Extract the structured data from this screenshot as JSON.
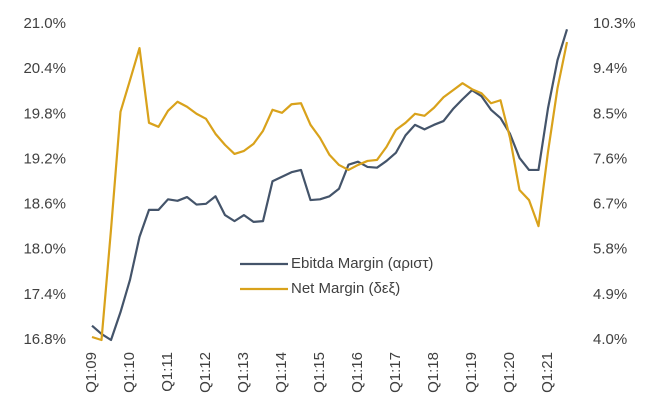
{
  "chart_data": {
    "type": "line",
    "categories": [
      "Q1:09",
      null,
      null,
      null,
      "Q1:10",
      null,
      null,
      null,
      "Q1:11",
      null,
      null,
      null,
      "Q1:12",
      null,
      null,
      null,
      "Q1:13",
      null,
      null,
      null,
      "Q1:14",
      null,
      null,
      null,
      "Q1:15",
      null,
      null,
      null,
      "Q1:16",
      null,
      null,
      null,
      "Q1:17",
      null,
      null,
      null,
      "Q1:18",
      null,
      null,
      null,
      "Q1:19",
      null,
      null,
      null,
      "Q1:20",
      null,
      null,
      null,
      "Q1:21",
      null,
      null
    ],
    "series": [
      {
        "name": "Ebitda Margin (αριστ)",
        "color": "#44546a",
        "axis": "y",
        "values": [
          16.99,
          16.88,
          16.8,
          17.17,
          17.6,
          18.17,
          18.53,
          18.53,
          18.67,
          18.65,
          18.7,
          18.6,
          18.61,
          18.71,
          18.46,
          18.38,
          18.46,
          18.37,
          18.38,
          18.91,
          18.97,
          19.03,
          19.06,
          18.66,
          18.67,
          18.71,
          18.81,
          19.13,
          19.17,
          19.1,
          19.09,
          19.18,
          19.29,
          19.52,
          19.66,
          19.6,
          19.66,
          19.71,
          19.87,
          20.0,
          20.12,
          20.04,
          19.86,
          19.75,
          19.54,
          19.22,
          19.06,
          19.06,
          19.88,
          20.52,
          20.93
        ]
      },
      {
        "name": "Net Margin (δεξ)",
        "color": "#d9a21b",
        "axis": "y2",
        "values": [
          4.06,
          4.0,
          6.2,
          8.55,
          9.18,
          9.82,
          8.33,
          8.25,
          8.57,
          8.75,
          8.65,
          8.51,
          8.41,
          8.11,
          7.89,
          7.71,
          7.77,
          7.91,
          8.17,
          8.59,
          8.53,
          8.7,
          8.72,
          8.29,
          8.03,
          7.69,
          7.49,
          7.39,
          7.49,
          7.57,
          7.59,
          7.85,
          8.19,
          8.33,
          8.51,
          8.47,
          8.63,
          8.84,
          8.98,
          9.12,
          9.0,
          8.92,
          8.72,
          8.78,
          8.03,
          6.99,
          6.79,
          6.27,
          7.75,
          9.02,
          9.94
        ]
      }
    ],
    "ylim": [
      16.8,
      21.0
    ],
    "yticks": [
      {
        "value": 16.8,
        "label": "16.8%"
      },
      {
        "value": 17.4,
        "label": "17.4%"
      },
      {
        "value": 18.0,
        "label": "18.0%"
      },
      {
        "value": 18.6,
        "label": "18.6%"
      },
      {
        "value": 19.2,
        "label": "19.2%"
      },
      {
        "value": 19.8,
        "label": "19.8%"
      },
      {
        "value": 20.4,
        "label": "20.4%"
      },
      {
        "value": 21.0,
        "label": "21.0%"
      }
    ],
    "y2lim": [
      4.0,
      10.3
    ],
    "y2ticks": [
      {
        "value": 4.0,
        "label": "4.0%"
      },
      {
        "value": 4.9,
        "label": "4.9%"
      },
      {
        "value": 5.8,
        "label": "5.8%"
      },
      {
        "value": 6.7,
        "label": "6.7%"
      },
      {
        "value": 7.6,
        "label": "7.6%"
      },
      {
        "value": 8.5,
        "label": "8.5%"
      },
      {
        "value": 9.4,
        "label": "9.4%"
      },
      {
        "value": 10.3,
        "label": "10.3%"
      }
    ],
    "grid": false,
    "legend": "center"
  }
}
